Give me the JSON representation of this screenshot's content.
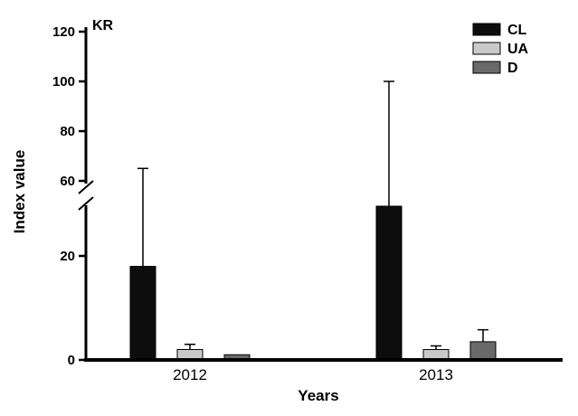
{
  "chart_data": {
    "type": "bar",
    "title": "",
    "annotation": "KR",
    "xlabel": "Years",
    "ylabel": "Index value",
    "categories": [
      "2012",
      "2013"
    ],
    "series": [
      {
        "name": "CL",
        "color": "#0d0d0d",
        "values": [
          18,
          55
        ],
        "errors_plus": [
          47,
          45
        ]
      },
      {
        "name": "UA",
        "color": "#c9c9c9",
        "values": [
          2,
          2
        ],
        "errors_plus": [
          1,
          0.7
        ]
      },
      {
        "name": "D",
        "color": "#6a6a6a",
        "values": [
          1,
          3.5
        ],
        "errors_plus": [
          0,
          2.3
        ]
      }
    ],
    "yticks": [
      0,
      20,
      60,
      80,
      100,
      120
    ],
    "ylim_display": [
      0,
      120
    ],
    "axis_break": {
      "from": 30,
      "to": 60
    },
    "legend": {
      "position": "top-right",
      "entries": [
        "CL",
        "UA",
        "D"
      ]
    },
    "grid": false
  }
}
